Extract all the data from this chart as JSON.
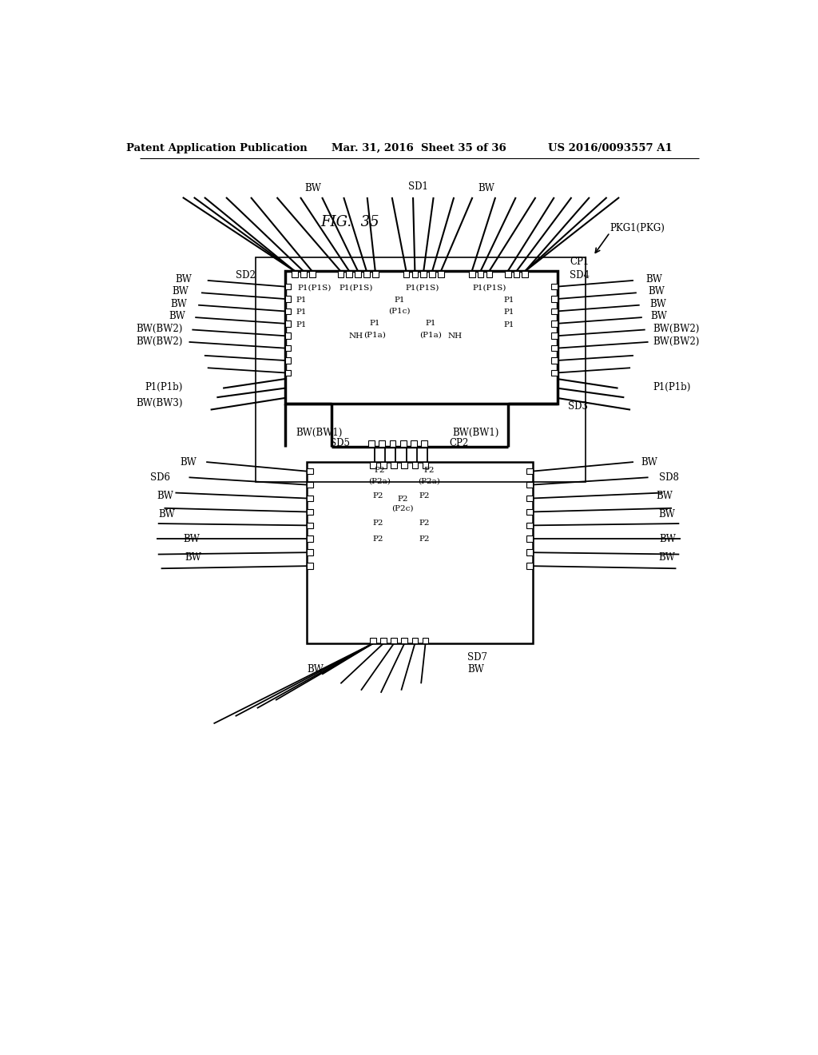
{
  "bg_color": "#ffffff",
  "header_left": "Patent Application Publication",
  "header_mid": "Mar. 31, 2016  Sheet 35 of 36",
  "header_right": "US 2016/0093557 A1",
  "fig_title": "FIG.  35",
  "pkg_label": "PKG1(PKG)"
}
